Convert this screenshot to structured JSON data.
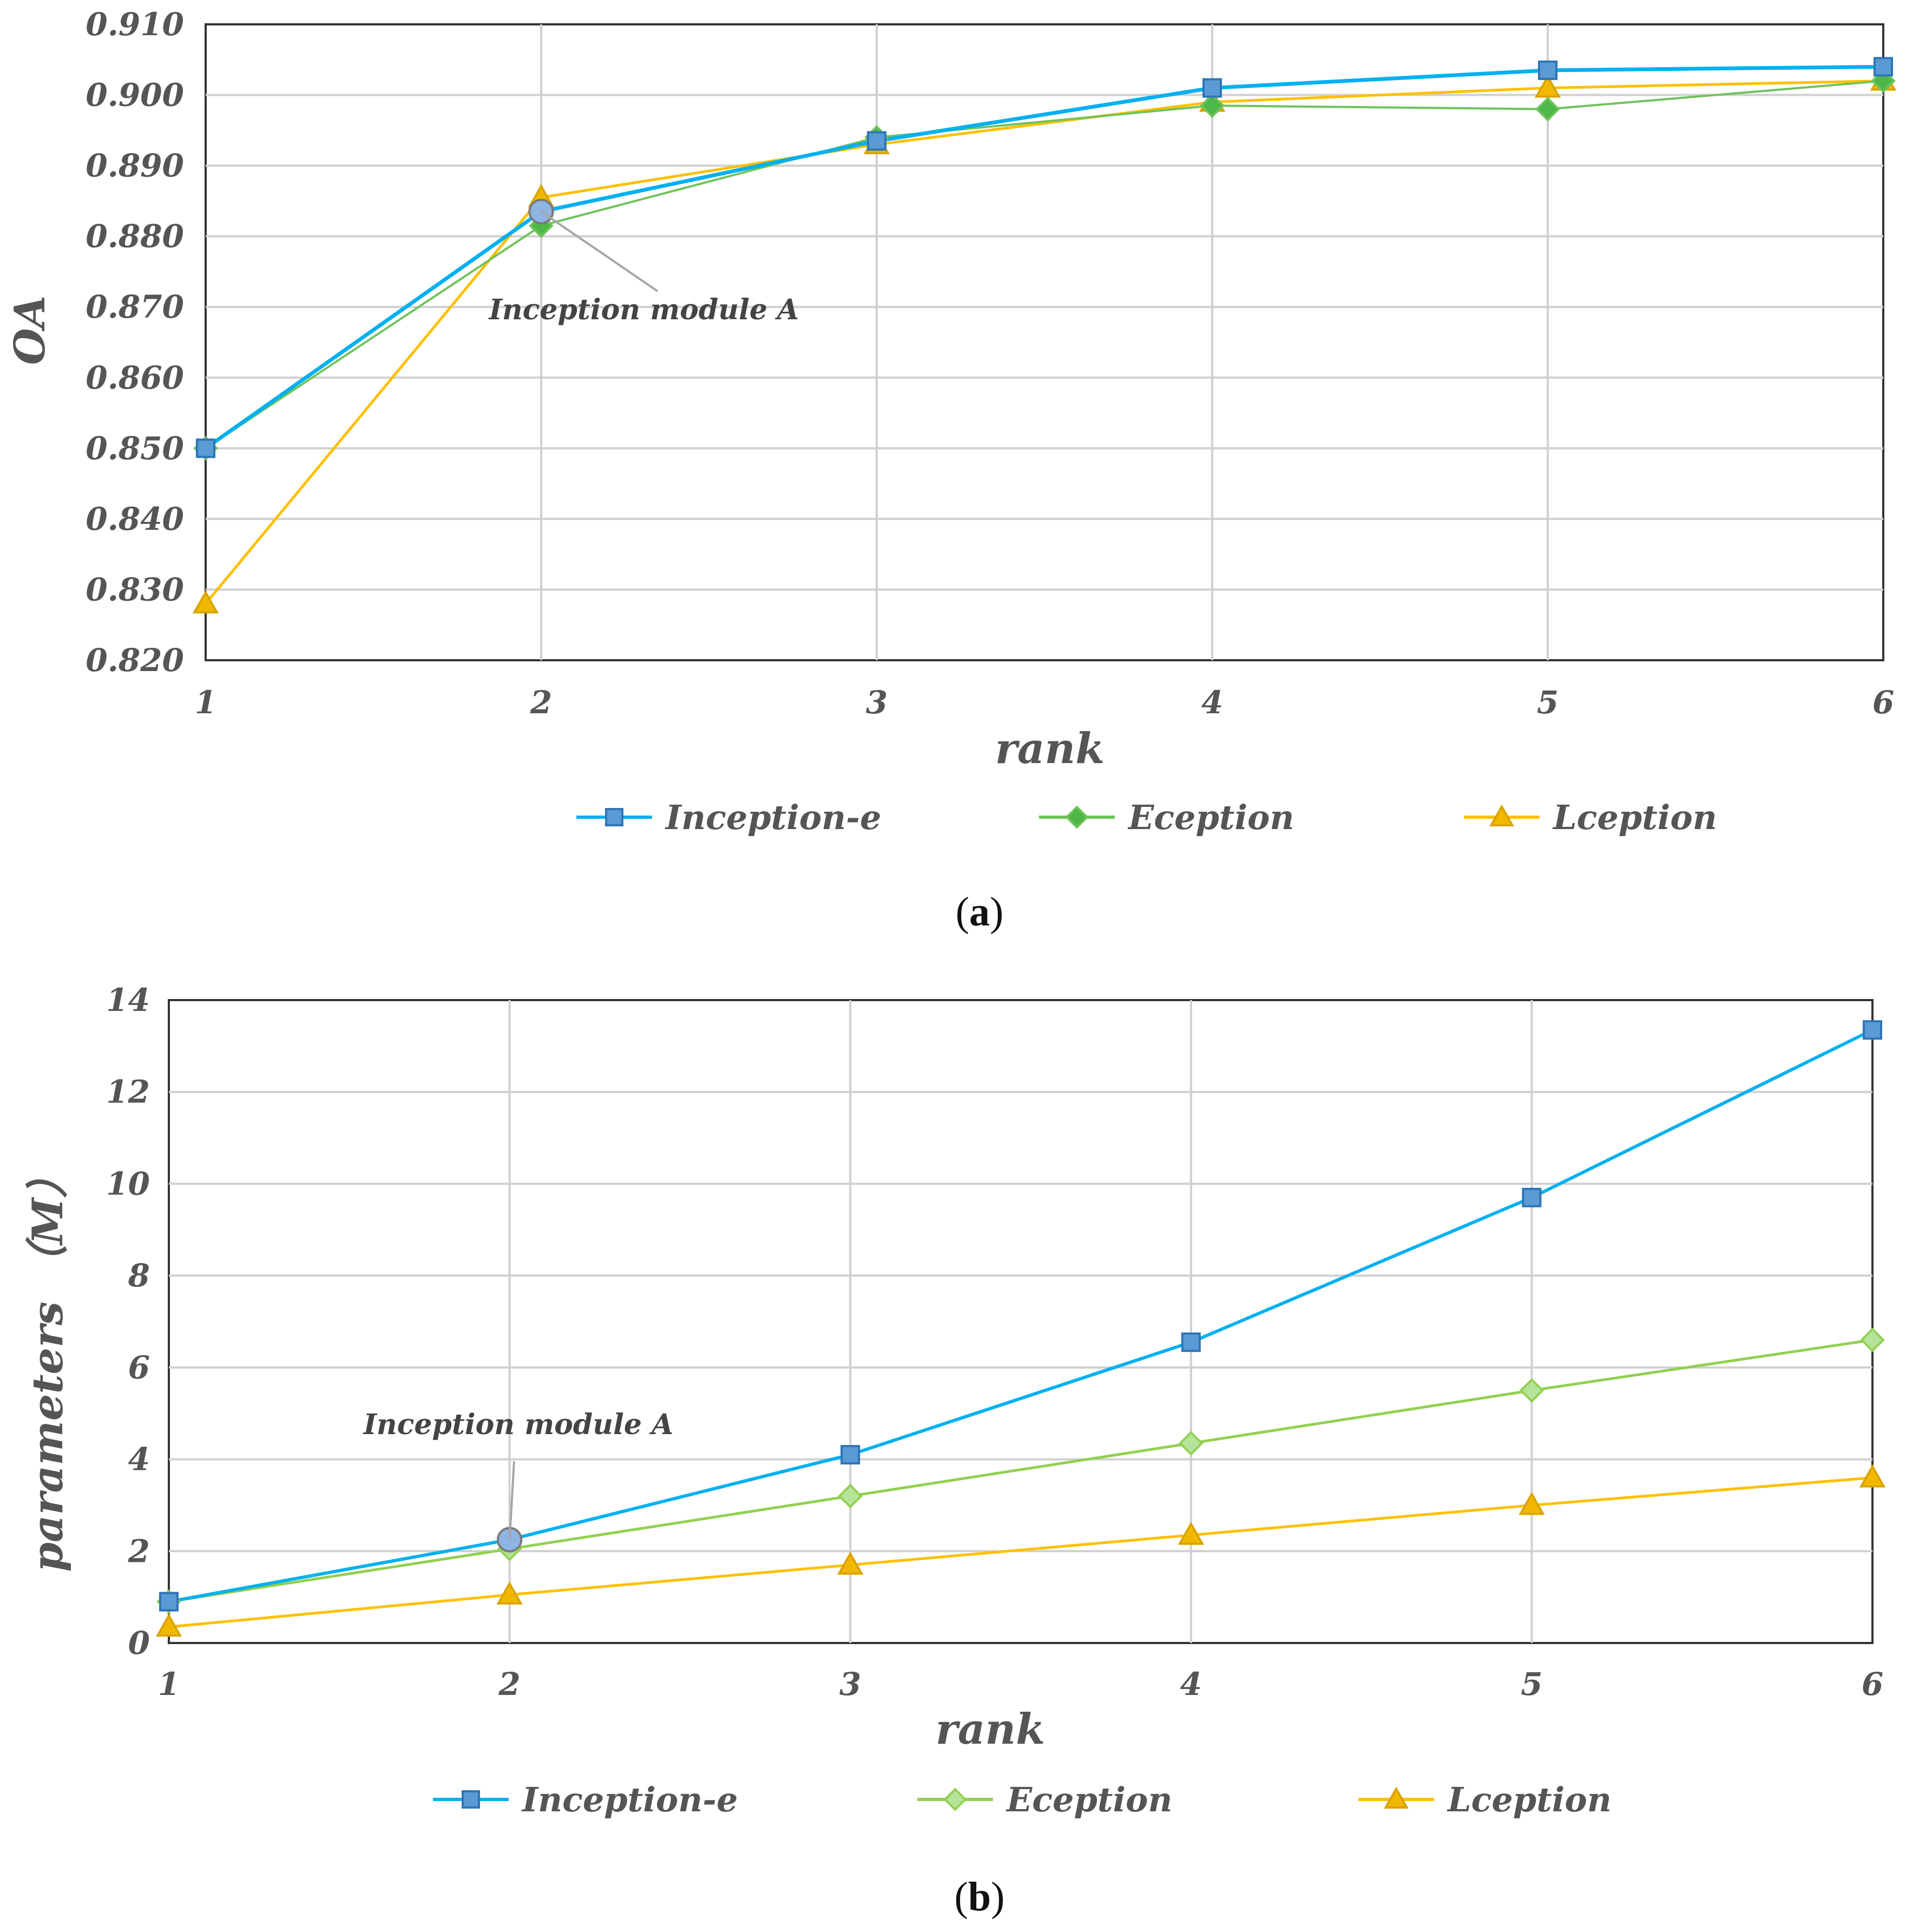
{
  "colors": {
    "inception_e": "#00B0F0",
    "inception_e_marker": "#5B9BD5",
    "eception_a": "#70C35A",
    "eception_a_marker": "#4DB848",
    "eception_b": "#92D050",
    "eception_b_marker": "#B6E39A",
    "lception": "#FFC000",
    "lception_marker": "#F2B800",
    "highlight_marker": "#8EB4E3",
    "grid": "#D0D0D0",
    "annotation_line": "#A6A6A6"
  },
  "chart_data": [
    {
      "id": "a",
      "type": "line",
      "caption": "a",
      "x": [
        1,
        2,
        3,
        4,
        5,
        6
      ],
      "xlim": [
        1,
        6
      ],
      "ylim": [
        0.82,
        0.91
      ],
      "yticks": [
        "0.820",
        "0.830",
        "0.840",
        "0.850",
        "0.860",
        "0.870",
        "0.880",
        "0.890",
        "0.900",
        "0.910"
      ],
      "xticks": [
        "1",
        "2",
        "3",
        "4",
        "5",
        "6"
      ],
      "xlabel": "rank",
      "ylabel": "OA",
      "grid": true,
      "legend_position": "bottom",
      "series": [
        {
          "name": "Inception-e",
          "values": [
            0.85,
            0.8835,
            0.8935,
            0.901,
            0.9035,
            0.904
          ],
          "marker": "square"
        },
        {
          "name": "Eception",
          "values": [
            0.85,
            0.8815,
            0.894,
            0.8985,
            0.898,
            0.902
          ],
          "marker": "diamond"
        },
        {
          "name": "Lception",
          "values": [
            0.828,
            0.8855,
            0.893,
            0.899,
            0.901,
            0.902
          ],
          "marker": "triangle"
        }
      ],
      "annotation": {
        "text": "Inception module A",
        "x": 2,
        "y": 0.8835
      }
    },
    {
      "id": "b",
      "type": "line",
      "caption": "b",
      "x": [
        1,
        2,
        3,
        4,
        5,
        6
      ],
      "xlim": [
        1,
        6
      ],
      "ylim": [
        0,
        14
      ],
      "yticks": [
        "0",
        "2",
        "4",
        "6",
        "8",
        "10",
        "12",
        "14"
      ],
      "xticks": [
        "1",
        "2",
        "3",
        "4",
        "5",
        "6"
      ],
      "xlabel": "rank",
      "ylabel": "parameters （M）",
      "grid": true,
      "legend_position": "bottom",
      "series": [
        {
          "name": "Inception-e",
          "values": [
            0.9,
            2.25,
            4.1,
            6.55,
            9.7,
            13.35
          ],
          "marker": "square"
        },
        {
          "name": "Eception",
          "values": [
            0.9,
            2.05,
            3.2,
            4.35,
            5.5,
            6.6
          ],
          "marker": "diamond"
        },
        {
          "name": "Lception",
          "values": [
            0.35,
            1.05,
            1.7,
            2.35,
            3.0,
            3.6
          ],
          "marker": "triangle"
        }
      ],
      "annotation": {
        "text": "Inception module A",
        "x": 2,
        "y": 2.25
      }
    }
  ]
}
